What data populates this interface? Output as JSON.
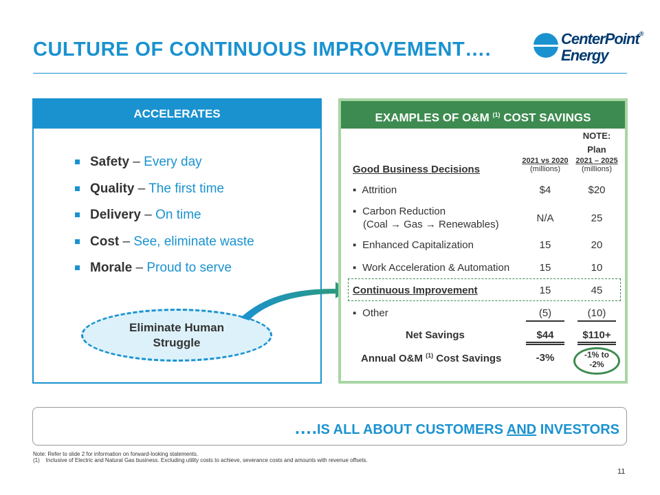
{
  "title": "CULTURE OF CONTINUOUS IMPROVEMENT….",
  "logo": {
    "line1": "CenterPoint",
    "line2": "Energy",
    "reg": "®"
  },
  "left": {
    "header": "ACCELERATES",
    "items": [
      {
        "bold": "Safety",
        "dash": " – ",
        "text": "Every day"
      },
      {
        "bold": "Quality",
        "dash": " – ",
        "text": "The first time"
      },
      {
        "bold": "Delivery",
        "dash": " – ",
        "text": "On time"
      },
      {
        "bold": "Cost",
        "dash": " – ",
        "text": "See, eliminate waste"
      },
      {
        "bold": "Morale",
        "dash": " – ",
        "text": "Proud to serve"
      }
    ],
    "ellipse_line1": "Eliminate Human",
    "ellipse_line2": "Struggle"
  },
  "right": {
    "header_pre": "EXAMPLES OF O&M",
    "header_sup": "(1)",
    "header_post": "COST SAVINGS",
    "note1": "NOTE:",
    "note2": "Plan",
    "col1_head": "2021 vs 2020",
    "col1_sub": "(millions)",
    "col2_head": "2021 – 2025",
    "col2_sub": "(millions)",
    "section_label": "Good Business Decisions",
    "rows": [
      {
        "label": "Attrition",
        "v1": "$4",
        "v2": "$20"
      },
      {
        "label1": "Carbon Reduction",
        "label2": "(Coal → Gas → Renewables)",
        "v1": "N/A",
        "v2": "25"
      },
      {
        "label": "Enhanced Capitalization",
        "v1": "15",
        "v2": "20"
      },
      {
        "label": "Work Acceleration & Automation",
        "v1": "15",
        "v2": "10"
      },
      {
        "label": "Continuous Improvement",
        "v1": "15",
        "v2": "45"
      },
      {
        "label": "Other",
        "v1": "(5)",
        "v2": "(10)"
      }
    ],
    "net_label": "Net Savings",
    "net_v1": "$44",
    "net_v2": "$110+",
    "annual_pre": "Annual O&M",
    "annual_sup": "(1)",
    "annual_post": "Cost Savings",
    "annual_v1": "-3%",
    "annual_v2a": "-1% to",
    "annual_v2b": "-2%",
    "bullet_char": "▪"
  },
  "tagline": {
    "dots": "….",
    "pre": "IS ALL ABOUT CUSTOMERS ",
    "and": "AND",
    "post": " INVESTORS"
  },
  "footnotes": {
    "note": "Note: Refer to slide 2 for information on forward-looking statements.",
    "fn1_num": "(1)",
    "fn1_text": "Inclusive of Electric and Natural Gas business. Excluding utility costs to achieve, severance costs and amounts with revenue offsets."
  },
  "page_number": "11",
  "colors": {
    "blue": "#1a92d0",
    "green": "#3d8b50",
    "navy": "#003a70"
  }
}
